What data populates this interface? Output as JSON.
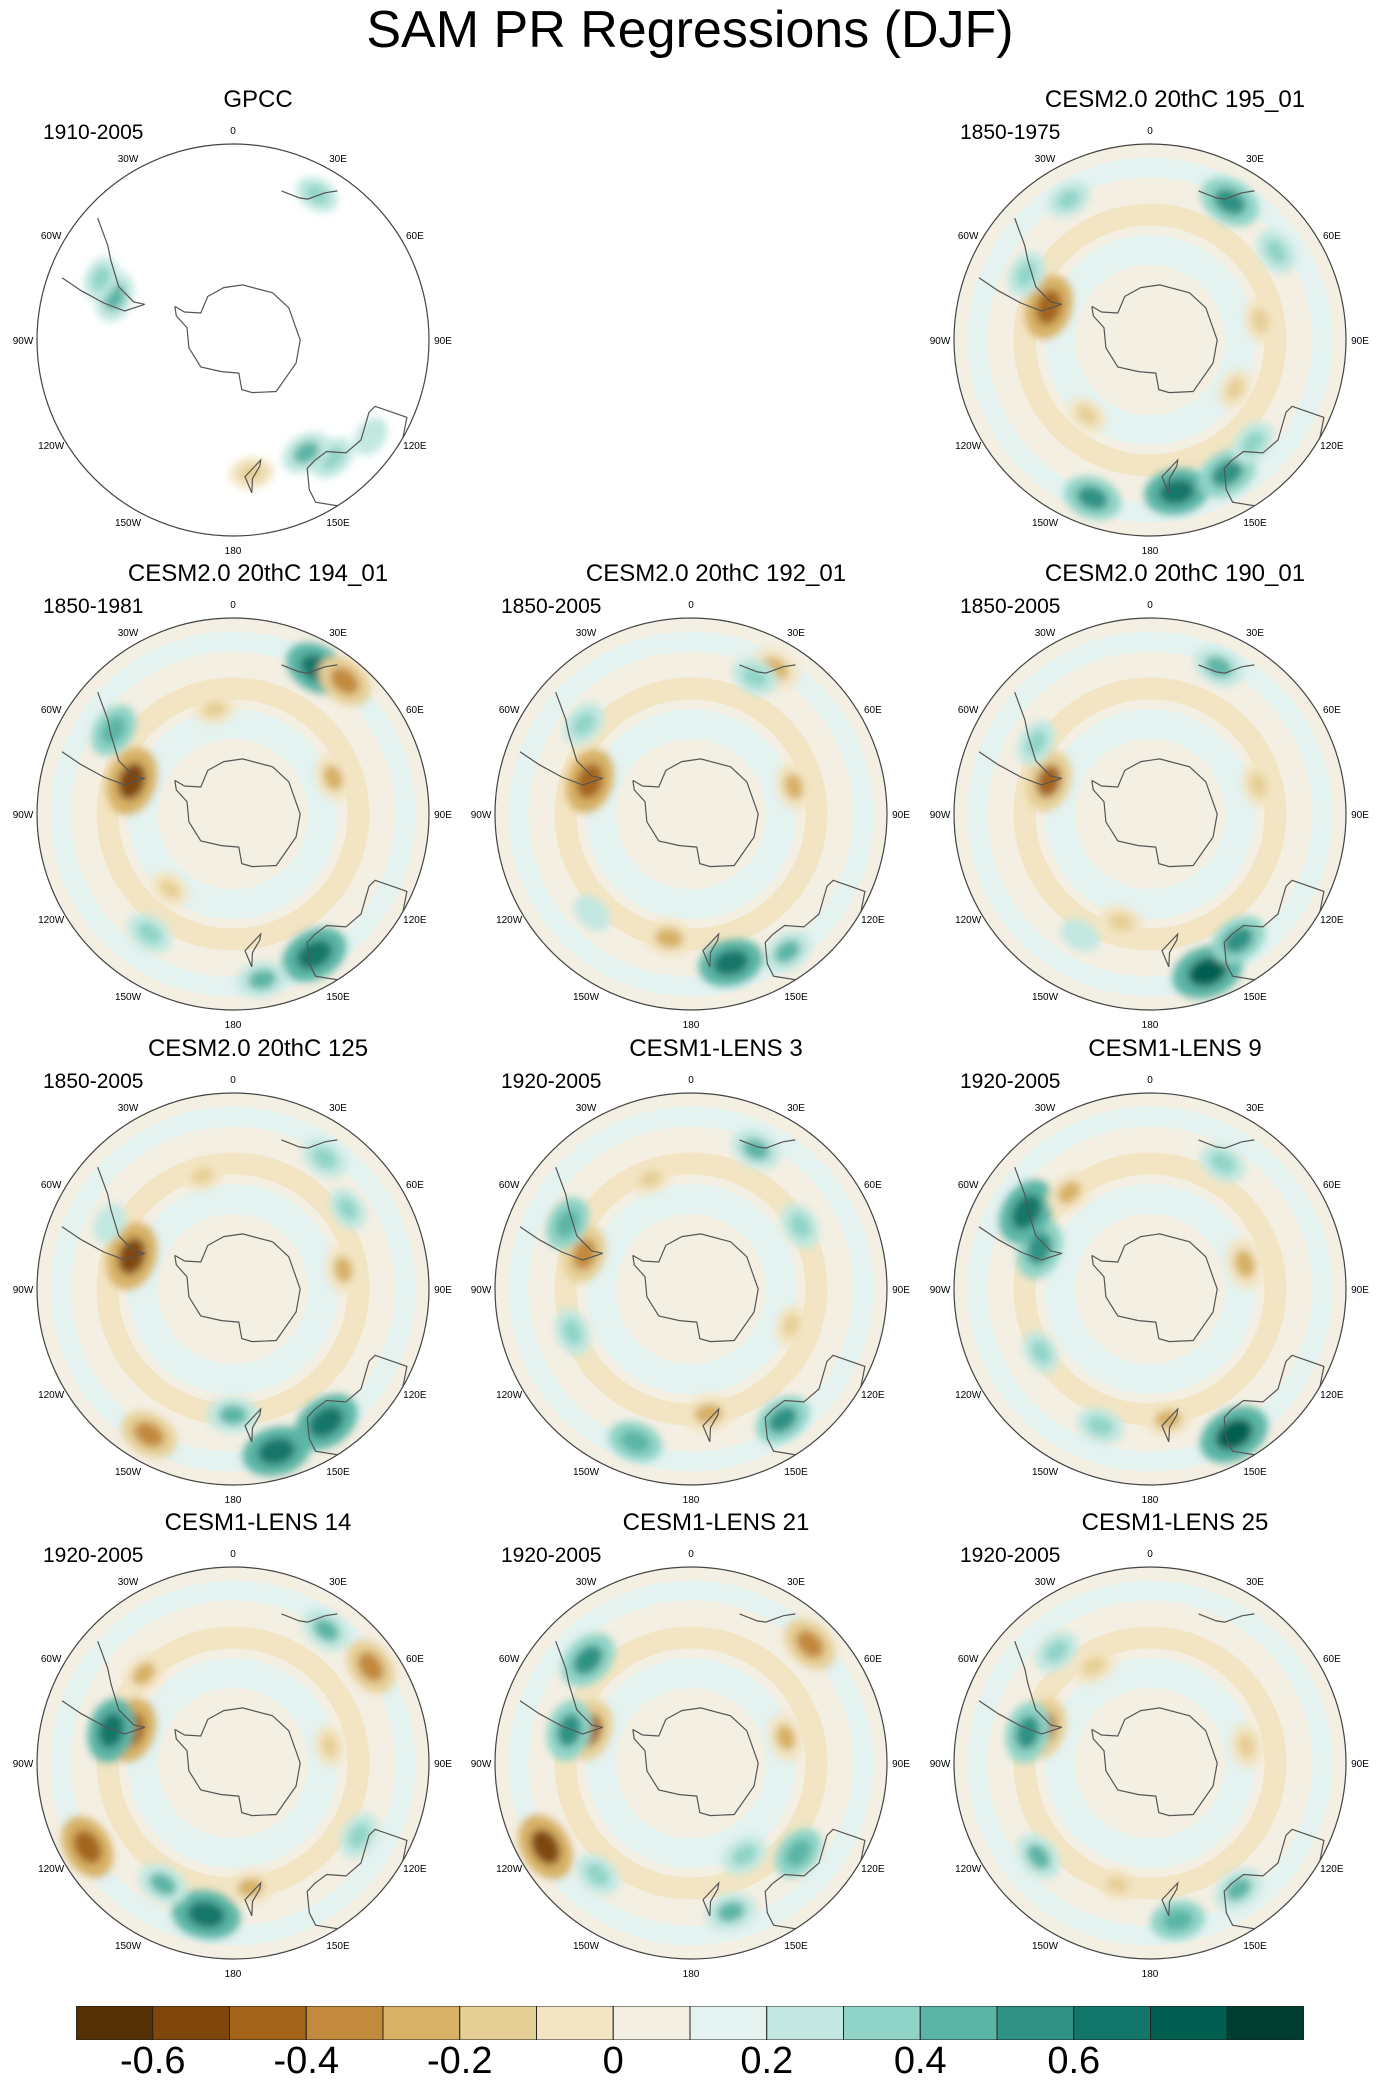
{
  "title": "SAM PR Regressions (DJF)",
  "panels": [
    {
      "id": "gpcc",
      "title": "GPCC",
      "period": "1910-2005",
      "observational": true,
      "features": [
        {
          "lat": -45,
          "lon": -70,
          "v": 0.35
        },
        {
          "lat": -38,
          "lon": -65,
          "v": 0.25
        },
        {
          "lat": -30,
          "lon": 30,
          "v": 0.25
        },
        {
          "lat": -35,
          "lon": 140,
          "v": 0.3
        },
        {
          "lat": -30,
          "lon": 125,
          "v": 0.2
        },
        {
          "lat": -42,
          "lon": 172,
          "v": -0.25
        },
        {
          "lat": -42,
          "lon": 147,
          "v": 0.35
        }
      ]
    },
    {
      "id": "cesm2-195",
      "title": "CESM2.0 20thC 195_01",
      "period": "1850-1975",
      "features": [
        {
          "lat": -52,
          "lon": -72,
          "v": -0.55
        },
        {
          "lat": -40,
          "lon": -62,
          "v": 0.3
        },
        {
          "lat": -32,
          "lon": -30,
          "v": 0.25
        },
        {
          "lat": -33,
          "lon": 30,
          "v": 0.5
        },
        {
          "lat": -35,
          "lon": 55,
          "v": 0.3
        },
        {
          "lat": -50,
          "lon": 80,
          "v": -0.25
        },
        {
          "lat": -55,
          "lon": 120,
          "v": -0.2
        },
        {
          "lat": -35,
          "lon": 170,
          "v": 0.55
        },
        {
          "lat": -35,
          "lon": 150,
          "v": 0.5
        },
        {
          "lat": -30,
          "lon": -160,
          "v": 0.45
        },
        {
          "lat": -38,
          "lon": 135,
          "v": 0.3
        },
        {
          "lat": -55,
          "lon": -140,
          "v": -0.2
        }
      ]
    },
    {
      "id": "cesm2-194",
      "title": "CESM2.0 20thC 194_01",
      "period": "1850-1981",
      "features": [
        {
          "lat": -52,
          "lon": -72,
          "v": -0.6
        },
        {
          "lat": -38,
          "lon": -55,
          "v": 0.4
        },
        {
          "lat": -30,
          "lon": 30,
          "v": 0.55
        },
        {
          "lat": -28,
          "lon": 40,
          "v": -0.45
        },
        {
          "lat": -52,
          "lon": 70,
          "v": -0.3
        },
        {
          "lat": -52,
          "lon": -10,
          "v": -0.2
        },
        {
          "lat": -32,
          "lon": 150,
          "v": 0.6
        },
        {
          "lat": -30,
          "lon": 170,
          "v": 0.35
        },
        {
          "lat": -38,
          "lon": -145,
          "v": 0.3
        },
        {
          "lat": -55,
          "lon": -140,
          "v": -0.2
        }
      ]
    },
    {
      "id": "cesm2-192",
      "title": "CESM2.0 20thC 192_01",
      "period": "1850-2005",
      "features": [
        {
          "lat": -52,
          "lon": -72,
          "v": -0.55
        },
        {
          "lat": -40,
          "lon": -50,
          "v": 0.3
        },
        {
          "lat": -30,
          "lon": 30,
          "v": -0.35
        },
        {
          "lat": -36,
          "lon": 25,
          "v": 0.3
        },
        {
          "lat": -52,
          "lon": 75,
          "v": -0.3
        },
        {
          "lat": -45,
          "lon": -170,
          "v": -0.35
        },
        {
          "lat": -35,
          "lon": 165,
          "v": 0.55
        },
        {
          "lat": -30,
          "lon": 145,
          "v": 0.35
        },
        {
          "lat": -40,
          "lon": -135,
          "v": 0.2
        }
      ]
    },
    {
      "id": "cesm2-190",
      "title": "CESM2.0 20thC 190_01",
      "period": "1850-2005",
      "features": [
        {
          "lat": -52,
          "lon": -72,
          "v": -0.5
        },
        {
          "lat": -42,
          "lon": -58,
          "v": 0.3
        },
        {
          "lat": -32,
          "lon": 25,
          "v": 0.35
        },
        {
          "lat": -50,
          "lon": 75,
          "v": -0.25
        },
        {
          "lat": -50,
          "lon": -165,
          "v": -0.25
        },
        {
          "lat": -30,
          "lon": 160,
          "v": 0.65
        },
        {
          "lat": -35,
          "lon": 145,
          "v": 0.45
        },
        {
          "lat": -40,
          "lon": -150,
          "v": 0.2
        }
      ]
    },
    {
      "id": "cesm2-125",
      "title": "CESM2.0 20thC 125",
      "period": "1850-2005",
      "features": [
        {
          "lat": -52,
          "lon": -72,
          "v": -0.6
        },
        {
          "lat": -40,
          "lon": -62,
          "v": 0.2
        },
        {
          "lat": -33,
          "lon": 35,
          "v": 0.3
        },
        {
          "lat": -40,
          "lon": 55,
          "v": 0.25
        },
        {
          "lat": -50,
          "lon": 80,
          "v": -0.3
        },
        {
          "lat": -48,
          "lon": -15,
          "v": -0.2
        },
        {
          "lat": -30,
          "lon": -150,
          "v": -0.45
        },
        {
          "lat": -30,
          "lon": 165,
          "v": 0.6
        },
        {
          "lat": -32,
          "lon": 145,
          "v": 0.6
        },
        {
          "lat": -45,
          "lon": 180,
          "v": 0.35
        }
      ]
    },
    {
      "id": "lens-3",
      "title": "CESM1-LENS 3",
      "period": "1920-2005",
      "features": [
        {
          "lat": -50,
          "lon": -72,
          "v": -0.45
        },
        {
          "lat": -40,
          "lon": -62,
          "v": 0.4
        },
        {
          "lat": -35,
          "lon": 25,
          "v": 0.35
        },
        {
          "lat": -45,
          "lon": 60,
          "v": 0.3
        },
        {
          "lat": -48,
          "lon": -20,
          "v": -0.2
        },
        {
          "lat": -52,
          "lon": 110,
          "v": -0.2
        },
        {
          "lat": -45,
          "lon": 172,
          "v": -0.35
        },
        {
          "lat": -33,
          "lon": 145,
          "v": 0.45
        },
        {
          "lat": -32,
          "lon": -160,
          "v": 0.4
        },
        {
          "lat": -45,
          "lon": -110,
          "v": 0.3
        }
      ]
    },
    {
      "id": "lens-9",
      "title": "CESM1-LENS 9",
      "period": "1920-2005",
      "features": [
        {
          "lat": -48,
          "lon": -70,
          "v": 0.5
        },
        {
          "lat": -38,
          "lon": -58,
          "v": 0.6
        },
        {
          "lat": -45,
          "lon": -40,
          "v": -0.3
        },
        {
          "lat": -38,
          "lon": 30,
          "v": 0.3
        },
        {
          "lat": -55,
          "lon": 75,
          "v": -0.35
        },
        {
          "lat": -43,
          "lon": 172,
          "v": -0.3
        },
        {
          "lat": -30,
          "lon": 150,
          "v": 0.65
        },
        {
          "lat": -38,
          "lon": -160,
          "v": 0.3
        },
        {
          "lat": -45,
          "lon": -120,
          "v": 0.25
        }
      ]
    },
    {
      "id": "lens-14",
      "title": "CESM1-LENS 14",
      "period": "1920-2005",
      "features": [
        {
          "lat": -52,
          "lon": -72,
          "v": -0.55
        },
        {
          "lat": -45,
          "lon": -75,
          "v": 0.55
        },
        {
          "lat": -45,
          "lon": -45,
          "v": -0.3
        },
        {
          "lat": -32,
          "lon": 35,
          "v": 0.35
        },
        {
          "lat": -30,
          "lon": 55,
          "v": -0.45
        },
        {
          "lat": -55,
          "lon": 80,
          "v": -0.2
        },
        {
          "lat": -30,
          "lon": -120,
          "v": -0.55
        },
        {
          "lat": -35,
          "lon": -170,
          "v": 0.6
        },
        {
          "lat": -40,
          "lon": -150,
          "v": 0.35
        },
        {
          "lat": -45,
          "lon": 172,
          "v": -0.3
        },
        {
          "lat": -38,
          "lon": 120,
          "v": 0.3
        }
      ]
    },
    {
      "id": "lens-21",
      "title": "CESM1-LENS 21",
      "period": "1920-2005",
      "features": [
        {
          "lat": -52,
          "lon": -72,
          "v": -0.5
        },
        {
          "lat": -45,
          "lon": -75,
          "v": 0.5
        },
        {
          "lat": -38,
          "lon": -45,
          "v": 0.5
        },
        {
          "lat": -30,
          "lon": 45,
          "v": -0.45
        },
        {
          "lat": -55,
          "lon": 75,
          "v": -0.3
        },
        {
          "lat": -30,
          "lon": -120,
          "v": -0.6
        },
        {
          "lat": -38,
          "lon": -140,
          "v": 0.3
        },
        {
          "lat": -35,
          "lon": 165,
          "v": 0.35
        },
        {
          "lat": -40,
          "lon": 130,
          "v": 0.4
        },
        {
          "lat": -52,
          "lon": 150,
          "v": 0.3
        }
      ]
    },
    {
      "id": "lens-25",
      "title": "CESM1-LENS 25",
      "period": "1920-2005",
      "features": [
        {
          "lat": -50,
          "lon": -72,
          "v": -0.5
        },
        {
          "lat": -45,
          "lon": -76,
          "v": 0.5
        },
        {
          "lat": -38,
          "lon": -40,
          "v": 0.3
        },
        {
          "lat": -50,
          "lon": -30,
          "v": -0.25
        },
        {
          "lat": -55,
          "lon": 80,
          "v": -0.25
        },
        {
          "lat": -38,
          "lon": -130,
          "v": 0.35
        },
        {
          "lat": -33,
          "lon": 170,
          "v": 0.4
        },
        {
          "lat": -35,
          "lon": 145,
          "v": 0.35
        },
        {
          "lat": -45,
          "lon": -165,
          "v": -0.2
        }
      ]
    }
  ],
  "map_labels": {
    "lon_0": "0",
    "lon_30e": "30E",
    "lon_60e": "60E",
    "lon_90e": "90E",
    "lon_120e": "120E",
    "lon_150e": "150E",
    "lon_180": "180",
    "lon_150w": "150W",
    "lon_120w": "120W",
    "lon_90w": "90W",
    "lon_60w": "60W",
    "lon_30w": "30W"
  },
  "colorbar": {
    "labels": [
      "-0.6",
      "-0.4",
      "-0.2",
      "0",
      "0.2",
      "0.4",
      "0.6"
    ],
    "colors": [
      "#543005",
      "#7f470c",
      "#a4651b",
      "#c3893c",
      "#d7b165",
      "#e6cf95",
      "#f3e5c3",
      "#f4efe3",
      "#e4f2f0",
      "#c2e8e1",
      "#90d4c7",
      "#5bb5a6",
      "#2f9284",
      "#12766a",
      "#005e51",
      "#003c30"
    ],
    "levels": [
      -0.7,
      -0.6,
      -0.5,
      -0.4,
      -0.3,
      -0.2,
      -0.1,
      0,
      0.1,
      0.2,
      0.3,
      0.4,
      0.5,
      0.6,
      0.7
    ]
  }
}
